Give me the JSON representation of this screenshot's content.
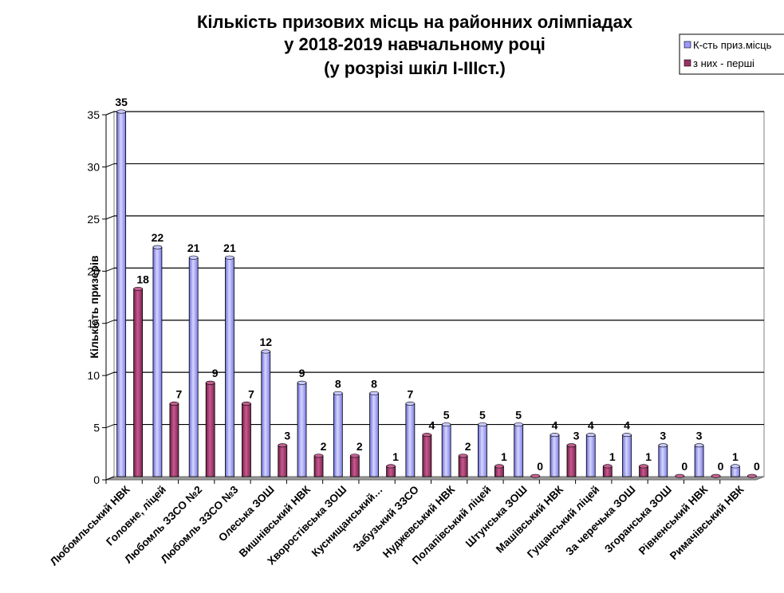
{
  "chart_data": {
    "type": "bar",
    "title_lines": [
      "Кількість призових місць на районних олімпіадах",
      "у 2018-2019 навчальному році",
      "(у розрізі шкіл І-ІІІст.)"
    ],
    "ylabel": "Кількість призерів",
    "xlabel": "",
    "ylim": [
      0,
      35
    ],
    "yticks": [
      0,
      5,
      10,
      15,
      20,
      25,
      30,
      35
    ],
    "grid": true,
    "legend_position": "top-right",
    "categories": [
      "Любомльський НВК",
      "Головне, ліцей",
      "Любомль ЗЗСО №2",
      "Любомль ЗЗСО №3",
      "Олеська ЗОШ",
      "Вишнівський  НВК",
      "Хворостівська ЗОШ",
      "Куснищанський…",
      "Забузький ЗЗСО",
      "Нуджевський  НВК",
      "Полапівський ліцей",
      "Штунська ЗОШ",
      "Машівський НВК",
      "Гущанський ліцей",
      "За черечька ЗОШ",
      "Згоранська ЗОШ",
      "Рівненський НВК",
      "Римачівський НВК"
    ],
    "series": [
      {
        "name": "К-сть приз.місць",
        "color": "#9999ff",
        "values": [
          35,
          22,
          21,
          21,
          12,
          9,
          8,
          8,
          7,
          5,
          5,
          5,
          4,
          4,
          4,
          3,
          3,
          1
        ]
      },
      {
        "name": "з них - перші",
        "color": "#993366",
        "values": [
          18,
          7,
          9,
          7,
          3,
          2,
          2,
          1,
          4,
          2,
          1,
          0,
          3,
          1,
          1,
          0,
          0,
          0
        ]
      }
    ]
  }
}
